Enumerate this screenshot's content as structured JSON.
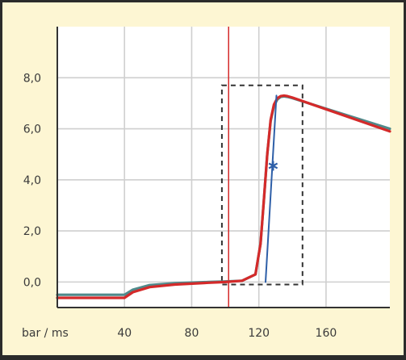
{
  "chart_data": {
    "type": "line",
    "xlabel": "bar / ms",
    "x_ticks": [
      40,
      80,
      120,
      160
    ],
    "x_tick_labels": [
      "40",
      "80",
      "120",
      "160"
    ],
    "xlim": [
      0,
      198
    ],
    "y_ticks": [
      0,
      2,
      4,
      6,
      8
    ],
    "y_tick_labels": [
      "0,0",
      "2,0",
      "4,0",
      "6,0",
      "8,0"
    ],
    "ylim": [
      -1.0,
      10.0
    ],
    "grid": true,
    "series": [
      {
        "color": "#4f8a8b",
        "x": [
          0,
          40,
          45,
          55,
          70,
          90,
          100,
          110,
          118,
          121,
          123,
          125,
          127,
          129,
          131,
          133,
          135,
          137,
          140,
          198
        ],
        "y": [
          -0.5,
          -0.5,
          -0.3,
          -0.12,
          -0.05,
          0.0,
          0.02,
          0.05,
          0.3,
          1.5,
          3.2,
          5.0,
          6.3,
          6.9,
          7.15,
          7.25,
          7.27,
          7.25,
          7.2,
          6.0
        ]
      },
      {
        "color": "#d42a2a",
        "x": [
          0,
          40,
          45,
          55,
          70,
          90,
          100,
          110,
          118,
          121,
          123,
          125,
          127,
          129,
          131,
          133,
          135,
          137,
          140,
          198
        ],
        "y": [
          -0.62,
          -0.62,
          -0.4,
          -0.2,
          -0.1,
          -0.03,
          0.0,
          0.05,
          0.3,
          1.5,
          3.2,
          5.0,
          6.35,
          6.95,
          7.2,
          7.28,
          7.3,
          7.28,
          7.22,
          5.9
        ]
      },
      {
        "color": "#2e5fa8",
        "x": [
          124,
          130.5
        ],
        "y": [
          0.0,
          7.3
        ]
      }
    ],
    "vertical_line": {
      "x": 102,
      "color": "#d42a2a"
    },
    "marker": {
      "x": 128.5,
      "y": 4.55,
      "shape": "asterisk",
      "color": "#2e5fa8"
    },
    "dashed_box": {
      "x": [
        98,
        146
      ],
      "y": [
        -0.1,
        7.7
      ]
    }
  }
}
